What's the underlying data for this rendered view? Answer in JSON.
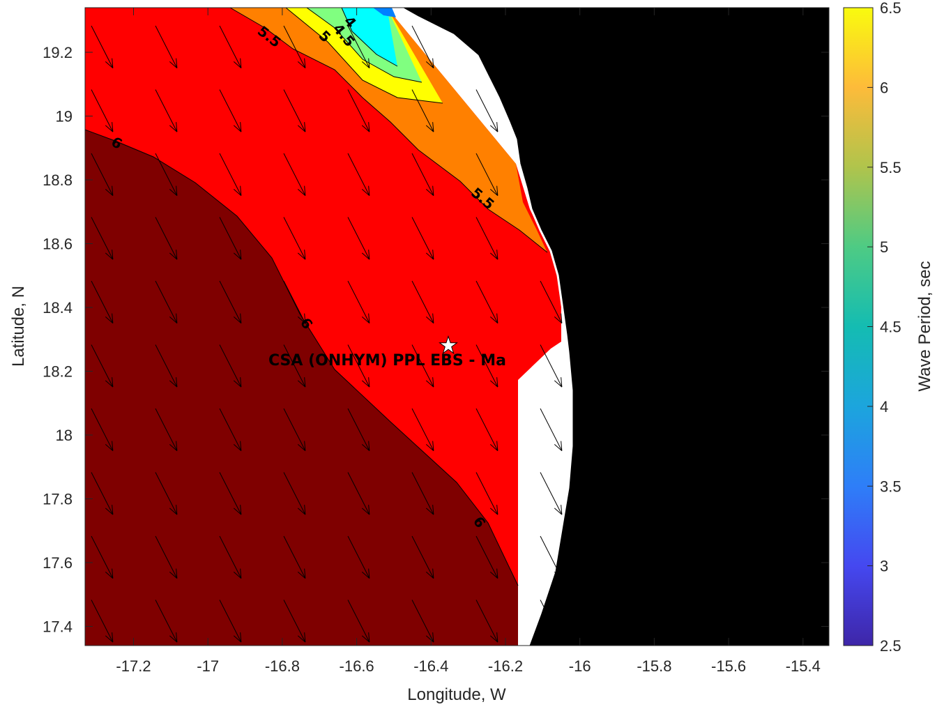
{
  "map": {
    "xlabel": "Longitude, W",
    "ylabel": "Latitude, N",
    "x_ticks": [
      "-17.2",
      "-17",
      "-16.8",
      "-16.6",
      "-16.4",
      "-16.2",
      "-16",
      "-15.8",
      "-15.6",
      "-15.4"
    ],
    "y_ticks": [
      "19.2",
      "19",
      "18.8",
      "18.6",
      "18.4",
      "18.2",
      "18",
      "17.8",
      "17.6",
      "17.4"
    ],
    "x_range": [
      -17.33,
      -15.33
    ],
    "y_range": [
      17.33,
      19.33
    ],
    "contour_labels": [
      "5.5",
      "5",
      "4.5",
      "4",
      "6",
      "5.5",
      "6",
      "6"
    ],
    "station_name": "CSA (ONHYM) PPL EBS  - Ma",
    "station_marker": "star-icon",
    "colors": {
      "land": "#000000",
      "period_6_plus": "#7f0000",
      "period_5_5_to_6": "#ff0000",
      "period_5_to_5_5": "#ff8000",
      "period_4_5_to_5": "#ffff00",
      "period_4_to_4_5": "#80ff80",
      "period_3_5_to_4": "#00ffff",
      "period_lowest": "#0080ff"
    }
  },
  "colorbar": {
    "label": "Wave Period, sec",
    "ticks": [
      "6.5",
      "6",
      "5.5",
      "5",
      "4.5",
      "4",
      "3.5",
      "3",
      "2.5"
    ],
    "range": [
      2.5,
      6.5
    ]
  }
}
